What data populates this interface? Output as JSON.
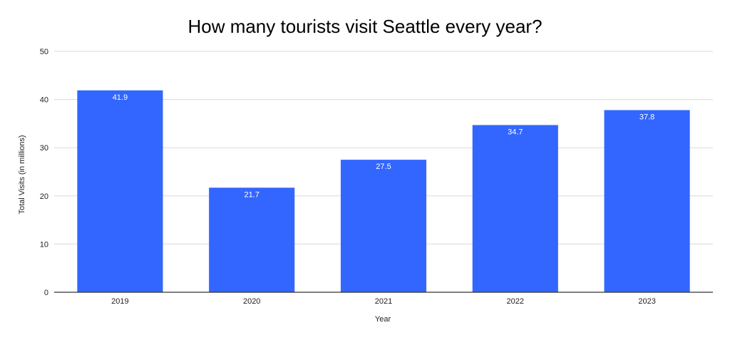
{
  "chart_data": {
    "type": "bar",
    "title": "How many tourists visit Seattle every year?",
    "xlabel": "Year",
    "ylabel": "Total Visits (in millions)",
    "categories": [
      "2019",
      "2020",
      "2021",
      "2022",
      "2023"
    ],
    "values": [
      41.9,
      21.7,
      27.5,
      34.7,
      37.8
    ],
    "data_labels": [
      "41.9",
      "21.7",
      "27.5",
      "34.7",
      "37.8"
    ],
    "ylim": [
      0,
      50
    ],
    "yticks": [
      0,
      10,
      20,
      30,
      40,
      50
    ],
    "ytick_labels": [
      "0",
      "10",
      "20",
      "30",
      "40",
      "50"
    ],
    "grid": true,
    "legend": "none",
    "colors": {
      "bar": "#3366ff",
      "grid": "#d9d9d9",
      "axis": "#333333"
    }
  }
}
